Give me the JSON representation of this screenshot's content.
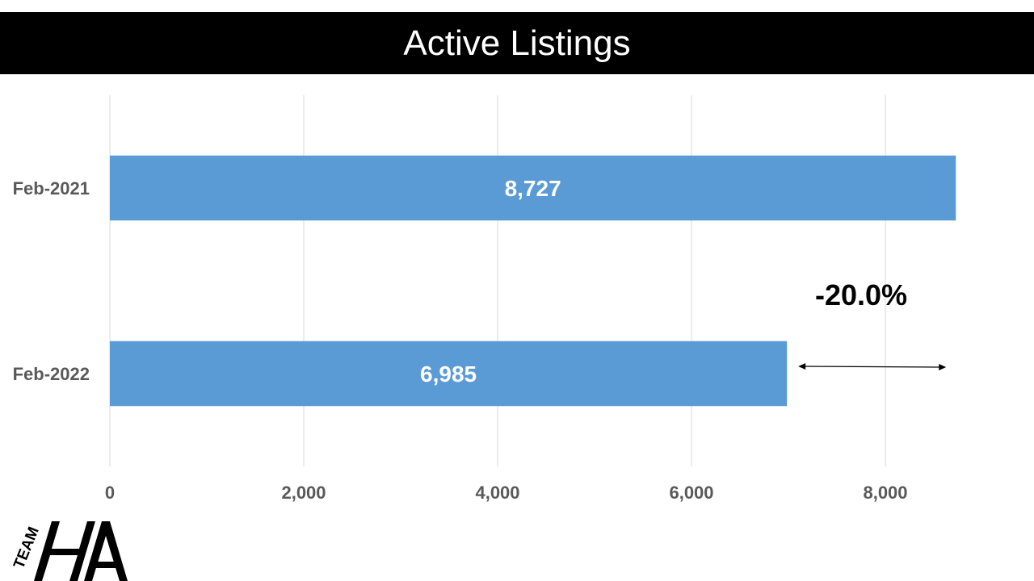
{
  "header": {
    "title": "Active Listings"
  },
  "chart_data": {
    "type": "bar",
    "orientation": "horizontal",
    "title": "Active Listings",
    "categories": [
      "Feb-2021",
      "Feb-2022"
    ],
    "values": [
      8727,
      6985
    ],
    "data_labels": [
      "8,727",
      "6,985"
    ],
    "xlim": [
      0,
      9000
    ],
    "x_ticks": [
      0,
      2000,
      4000,
      6000,
      8000
    ],
    "x_tick_labels": [
      "0",
      "2,000",
      "4,000",
      "6,000",
      "8,000"
    ],
    "grid": true,
    "legend": "none",
    "bar_color": "#5B9BD5",
    "annotation": {
      "text": "-20.0%",
      "from_value": 6985,
      "to_value": 8727
    }
  },
  "logo": {
    "text_team": "TEAM",
    "text_mark": "HA"
  }
}
